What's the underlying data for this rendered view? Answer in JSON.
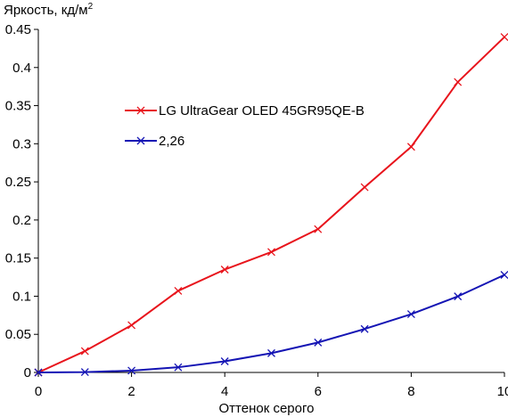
{
  "chart_data": {
    "type": "line",
    "ylabel": "Яркость, кд/м",
    "ylabel_sup": "2",
    "xlabel": "Оттенок серого",
    "xlim": [
      0,
      10
    ],
    "ylim": [
      0,
      0.45
    ],
    "x_ticks": [
      "0",
      "2",
      "4",
      "6",
      "8",
      "10"
    ],
    "y_ticks": [
      "0",
      "0.05",
      "0.1",
      "0.15",
      "0.2",
      "0.25",
      "0.3",
      "0.35",
      "0.4",
      "0.45"
    ],
    "grid": false,
    "legend_position": "middle-left",
    "x": [
      0,
      1,
      2,
      3,
      4,
      5,
      6,
      7,
      8,
      9,
      10
    ],
    "series": [
      {
        "name": "LG UltraGear OLED 45GR95QE-B",
        "color": "#e8141c",
        "marker": "x",
        "values": [
          0,
          0.028,
          0.062,
          0.107,
          0.135,
          0.158,
          0.188,
          0.243,
          0.296,
          0.381,
          0.44
        ]
      },
      {
        "name": "2,26",
        "color": "#1414b4",
        "marker": "x",
        "values": [
          0,
          0.0005,
          0.0024,
          0.0068,
          0.0146,
          0.0253,
          0.0393,
          0.057,
          0.0765,
          0.0998,
          0.128
        ]
      }
    ]
  }
}
